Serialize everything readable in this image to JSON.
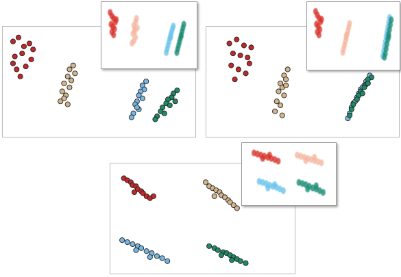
{
  "chart_data": [
    {
      "type": "scatter",
      "xlim": [
        0,
        100
      ],
      "ylim": [
        0,
        100
      ],
      "series": [
        {
          "color": "#c0282a",
          "x": [
            3,
            6,
            9,
            12,
            4,
            8,
            13,
            5,
            10,
            7,
            14,
            3
          ],
          "values": [
            90,
            94,
            85,
            88,
            75,
            78,
            72,
            62,
            65,
            55,
            82,
            68
          ]
        },
        {
          "color": "#d4b48a",
          "x": [
            36,
            34,
            37,
            33,
            35,
            31,
            34,
            30,
            32,
            29,
            33,
            31
          ],
          "values": [
            66,
            62,
            58,
            55,
            51,
            48,
            44,
            40,
            36,
            30,
            27,
            33
          ]
        },
        {
          "color": "#78b6e2",
          "x": [
            76,
            74,
            75,
            73,
            72,
            74,
            71,
            70,
            72,
            69,
            68,
            71
          ],
          "values": [
            50,
            46,
            42,
            40,
            36,
            33,
            30,
            27,
            22,
            18,
            14,
            24
          ]
        },
        {
          "color": "#1f8a68",
          "x": [
            93,
            91,
            90,
            88,
            87,
            89,
            85,
            84,
            86,
            82,
            81,
            92
          ],
          "values": [
            41,
            38,
            34,
            32,
            28,
            26,
            24,
            20,
            18,
            15,
            12,
            30
          ]
        }
      ]
    },
    {
      "type": "scatter",
      "xlim": [
        0,
        100
      ],
      "ylim": [
        0,
        100
      ],
      "series": [
        {
          "color": "#d8322b",
          "x": [
            6,
            8,
            10,
            12,
            7,
            9,
            11,
            8,
            13,
            10
          ],
          "values": [
            88,
            82,
            78,
            72,
            68,
            64,
            60,
            55,
            76,
            50
          ]
        },
        {
          "color": "#f4b8a0",
          "x": [
            36,
            35,
            33,
            37,
            34,
            32,
            35,
            33,
            31,
            34
          ],
          "values": [
            78,
            72,
            66,
            62,
            56,
            52,
            46,
            40,
            36,
            60
          ]
        },
        {
          "color": "#6cc4ec",
          "x": [
            78,
            77,
            76,
            75,
            74,
            73,
            72,
            71,
            70,
            75
          ],
          "values": [
            65,
            60,
            55,
            50,
            44,
            38,
            32,
            26,
            20,
            46
          ]
        },
        {
          "color": "#1c8c74",
          "x": [
            90,
            89,
            88,
            87,
            86,
            85,
            84,
            83,
            82,
            87
          ],
          "values": [
            68,
            62,
            56,
            50,
            44,
            38,
            32,
            26,
            20,
            48
          ]
        }
      ]
    },
    {
      "type": "scatter",
      "xlim": [
        0,
        100
      ],
      "ylim": [
        0,
        100
      ],
      "series": [
        {
          "color": "#c0282a",
          "x": [
            10,
            14,
            18,
            22,
            12,
            16,
            20,
            11,
            15,
            19,
            13,
            21
          ],
          "values": [
            88,
            92,
            86,
            84,
            78,
            76,
            74,
            66,
            62,
            58,
            52,
            68
          ]
        },
        {
          "color": "#d4b48a",
          "x": [
            42,
            40,
            41,
            38,
            39,
            37,
            40,
            36,
            38,
            35,
            39,
            41
          ],
          "values": [
            62,
            56,
            52,
            48,
            44,
            40,
            36,
            30,
            26,
            20,
            16,
            46
          ]
        },
        {
          "color": "#78b6e2",
          "x": [
            87,
            85,
            84,
            82,
            81,
            80,
            78,
            77,
            76,
            75,
            83,
            79
          ],
          "values": [
            56,
            50,
            46,
            42,
            38,
            34,
            28,
            24,
            18,
            13,
            44,
            30
          ]
        },
        {
          "color": "#1f8a68",
          "x": [
            88,
            86,
            85,
            84,
            82,
            81,
            80,
            78,
            77,
            76,
            86,
            83
          ],
          "values": [
            54,
            52,
            47,
            44,
            40,
            36,
            32,
            27,
            22,
            16,
            48,
            38
          ]
        }
      ]
    },
    {
      "type": "scatter",
      "xlim": [
        0,
        100
      ],
      "ylim": [
        0,
        100
      ],
      "series": [
        {
          "color": "#d8322b",
          "x": [
            6,
            8,
            10,
            12,
            7,
            9,
            11,
            8,
            13,
            10
          ],
          "values": [
            90,
            84,
            79,
            73,
            69,
            65,
            60,
            56,
            77,
            51
          ]
        },
        {
          "color": "#f4b8a0",
          "x": [
            46,
            45,
            44,
            43,
            42,
            41,
            40,
            39,
            38,
            42
          ],
          "values": [
            70,
            64,
            58,
            52,
            46,
            40,
            34,
            28,
            22,
            50
          ]
        },
        {
          "color": "#6cc4ec",
          "x": [
            93,
            92,
            91,
            90,
            89,
            88,
            87,
            86,
            85,
            90
          ],
          "values": [
            80,
            72,
            64,
            56,
            48,
            40,
            32,
            24,
            16,
            52
          ]
        },
        {
          "color": "#1c8c74",
          "x": [
            95,
            94,
            93,
            92,
            91,
            90,
            89,
            88,
            87,
            92
          ],
          "values": [
            76,
            68,
            60,
            52,
            44,
            36,
            28,
            20,
            14,
            48
          ]
        }
      ]
    },
    {
      "type": "scatter",
      "xlim": [
        0,
        100
      ],
      "ylim": [
        0,
        100
      ],
      "series": [
        {
          "color": "#c0282a",
          "x": [
            5,
            7,
            9,
            10,
            12,
            13,
            15,
            16,
            18,
            20,
            11,
            22
          ],
          "values": [
            90,
            88,
            86,
            83,
            82,
            79,
            77,
            75,
            72,
            70,
            76,
            72
          ]
        },
        {
          "color": "#d4b48a",
          "x": [
            52,
            54,
            56,
            58,
            60,
            61,
            63,
            65,
            66,
            68,
            57,
            70
          ],
          "values": [
            86,
            82,
            80,
            78,
            76,
            73,
            71,
            68,
            66,
            63,
            72,
            60
          ]
        },
        {
          "color": "#78b6e2",
          "x": [
            4,
            7,
            10,
            13,
            15,
            18,
            21,
            24,
            27,
            30,
            12,
            20
          ],
          "values": [
            28,
            26,
            24,
            22,
            20,
            17,
            15,
            12,
            10,
            7,
            18,
            11
          ]
        },
        {
          "color": "#1f8a68",
          "x": [
            54,
            57,
            59,
            62,
            64,
            66,
            68,
            70,
            72,
            75,
            61,
            67
          ],
          "values": [
            22,
            20,
            18,
            16,
            15,
            13,
            11,
            9,
            7,
            5,
            13,
            8
          ]
        }
      ]
    },
    {
      "type": "scatter",
      "xlim": [
        0,
        100
      ],
      "ylim": [
        0,
        100
      ],
      "series": [
        {
          "color": "#d8322b",
          "x": [
            10,
            14,
            18,
            22,
            26,
            30,
            34,
            38,
            20,
            28
          ],
          "values": [
            88,
            86,
            84,
            82,
            80,
            78,
            76,
            73,
            78,
            84
          ]
        },
        {
          "color": "#f4b8a0",
          "x": [
            60,
            64,
            68,
            72,
            76,
            80,
            84,
            88,
            70,
            80
          ],
          "values": [
            84,
            82,
            80,
            78,
            76,
            74,
            72,
            70,
            74,
            80
          ]
        },
        {
          "color": "#6cc4ec",
          "x": [
            16,
            20,
            24,
            28,
            32,
            36,
            40,
            44,
            26,
            34
          ],
          "values": [
            36,
            34,
            32,
            29,
            27,
            25,
            22,
            19,
            24,
            30
          ]
        },
        {
          "color": "#1c8c74",
          "x": [
            62,
            66,
            70,
            74,
            78,
            82,
            86,
            90,
            72,
            82
          ],
          "values": [
            34,
            32,
            30,
            27,
            24,
            22,
            19,
            16,
            22,
            28
          ]
        }
      ]
    }
  ]
}
